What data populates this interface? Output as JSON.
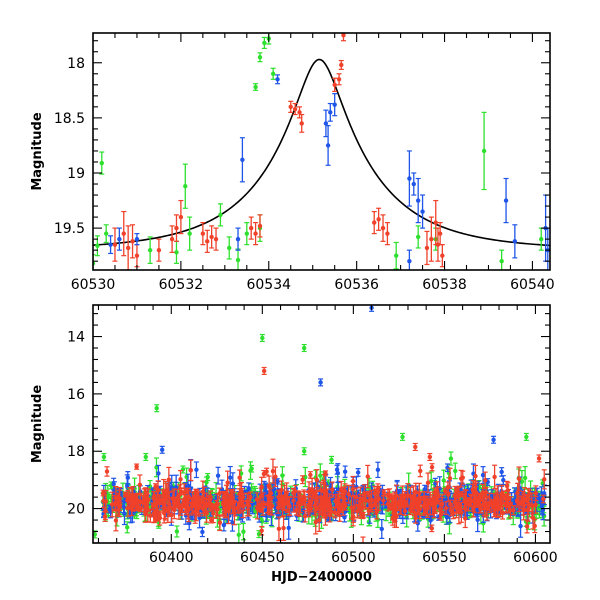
{
  "colors": {
    "green": "#2ee02e",
    "red": "#f0412a",
    "blue": "#1f55e8",
    "model_curve": "#000000",
    "axes": "#000000",
    "background": "#ffffff"
  },
  "chart_data": [
    {
      "type": "scatter",
      "panel": "top",
      "xlabel": "",
      "ylabel": "Magnitude",
      "xlim": [
        60530,
        60540.4
      ],
      "ylim": [
        19.88,
        17.73
      ],
      "y_inverted": true,
      "x_ticks": [
        60530,
        60532,
        60534,
        60536,
        60538,
        60540
      ],
      "y_ticks": [
        18,
        18.5,
        19,
        19.5
      ],
      "grid": false,
      "legend": "none",
      "model_curve": {
        "type": "line",
        "t0": 60535.15,
        "peak_mag": 17.97,
        "base_mag": 19.7,
        "tE": 2.3
      },
      "series": [
        {
          "color": "green",
          "points": [
            [
              60530.2,
              18.91,
              0.1
            ],
            [
              60530.3,
              19.55,
              0.08
            ],
            [
              60530.0,
              19.82,
              0.08
            ],
            [
              60530.1,
              19.66,
              0.09
            ],
            [
              60531.3,
              19.7,
              0.12
            ],
            [
              60531.9,
              19.72,
              0.1
            ],
            [
              60532.1,
              19.12,
              0.2
            ],
            [
              60532.2,
              19.55,
              0.15
            ],
            [
              60532.9,
              19.38,
              0.1
            ],
            [
              60533.1,
              19.68,
              0.1
            ],
            [
              60533.3,
              19.79,
              0.1
            ],
            [
              60533.5,
              19.55,
              0.1
            ],
            [
              60533.8,
              19.5,
              0.12
            ],
            [
              60533.9,
              17.82,
              0.05
            ],
            [
              60534.0,
              17.78,
              0.05
            ],
            [
              60533.8,
              17.95,
              0.04
            ],
            [
              60534.1,
              18.1,
              0.05
            ],
            [
              60533.7,
              18.22,
              0.03
            ],
            [
              60536.9,
              19.75,
              0.12
            ],
            [
              60537.4,
              19.58,
              0.1
            ],
            [
              60537.8,
              19.6,
              0.1
            ],
            [
              60538.9,
              18.8,
              0.35
            ],
            [
              60539.3,
              19.8,
              0.1
            ],
            [
              60540.2,
              19.6,
              0.1
            ]
          ]
        },
        {
          "color": "red",
          "points": [
            [
              60530.5,
              19.65,
              0.15
            ],
            [
              60530.7,
              19.55,
              0.2
            ],
            [
              60530.8,
              19.68,
              0.2
            ],
            [
              60530.9,
              19.62,
              0.15
            ],
            [
              60531.0,
              19.75,
              0.1
            ],
            [
              60531.5,
              19.7,
              0.1
            ],
            [
              60531.8,
              19.6,
              0.12
            ],
            [
              60531.9,
              19.5,
              0.12
            ],
            [
              60532.0,
              19.4,
              0.15
            ],
            [
              60532.5,
              19.55,
              0.1
            ],
            [
              60532.6,
              19.62,
              0.1
            ],
            [
              60532.7,
              19.58,
              0.1
            ],
            [
              60532.8,
              19.6,
              0.1
            ],
            [
              60533.6,
              19.5,
              0.1
            ],
            [
              60533.7,
              19.55,
              0.1
            ],
            [
              60533.8,
              19.48,
              0.1
            ],
            [
              60534.5,
              18.4,
              0.05
            ],
            [
              60534.6,
              18.42,
              0.05
            ],
            [
              60534.7,
              18.45,
              0.05
            ],
            [
              60534.75,
              18.55,
              0.08
            ],
            [
              60535.5,
              18.2,
              0.06
            ],
            [
              60535.6,
              18.15,
              0.05
            ],
            [
              60535.65,
              18.02,
              0.04
            ],
            [
              60535.7,
              17.75,
              0.05
            ],
            [
              60536.4,
              19.45,
              0.1
            ],
            [
              60536.5,
              19.42,
              0.1
            ],
            [
              60536.6,
              19.5,
              0.12
            ],
            [
              60536.7,
              19.55,
              0.1
            ],
            [
              60537.6,
              19.68,
              0.15
            ],
            [
              60537.7,
              19.6,
              0.2
            ],
            [
              60537.8,
              19.45,
              0.2
            ],
            [
              60537.85,
              19.65,
              0.15
            ],
            [
              60537.9,
              19.55,
              0.1
            ],
            [
              60537.95,
              19.75,
              0.1
            ]
          ]
        },
        {
          "color": "blue",
          "points": [
            [
              60530.4,
              19.65,
              0.08
            ],
            [
              60530.6,
              19.6,
              0.1
            ],
            [
              60531.0,
              19.6,
              0.05
            ],
            [
              60533.3,
              19.6,
              0.1
            ],
            [
              60533.4,
              18.88,
              0.2
            ],
            [
              60534.2,
              18.15,
              0.04
            ],
            [
              60535.3,
              18.55,
              0.12
            ],
            [
              60535.35,
              18.75,
              0.18
            ],
            [
              60535.4,
              18.45,
              0.08
            ],
            [
              60535.5,
              18.38,
              0.1
            ],
            [
              60537.2,
              19.05,
              0.25
            ],
            [
              60537.3,
              19.1,
              0.1
            ],
            [
              60537.4,
              19.25,
              0.2
            ],
            [
              60537.5,
              19.35,
              0.15
            ],
            [
              60537.2,
              19.8,
              0.1
            ],
            [
              60539.4,
              19.25,
              0.2
            ],
            [
              60539.6,
              19.62,
              0.15
            ],
            [
              60540.3,
              19.5,
              0.3
            ],
            [
              60540.35,
              19.7,
              0.2
            ]
          ]
        }
      ]
    },
    {
      "type": "scatter",
      "panel": "bottom",
      "xlabel": "HJD−2400000",
      "ylabel": "Magnitude",
      "xlim": [
        60357,
        60608
      ],
      "ylim": [
        21.2,
        12.9
      ],
      "y_inverted": true,
      "x_ticks": [
        60400,
        60450,
        60500,
        60550,
        60600
      ],
      "y_ticks": [
        14,
        16,
        18,
        20
      ],
      "grid": false,
      "legend": "none",
      "baseline_mag": 19.8,
      "outliers": [
        {
          "color": "blue",
          "x": 60510,
          "y": 13.0
        },
        {
          "color": "green",
          "x": 60450,
          "y": 14.05
        },
        {
          "color": "green",
          "x": 60473,
          "y": 14.4
        },
        {
          "color": "red",
          "x": 60451,
          "y": 15.2
        },
        {
          "color": "blue",
          "x": 60482,
          "y": 15.6
        },
        {
          "color": "green",
          "x": 60392,
          "y": 16.5
        },
        {
          "color": "blue",
          "x": 60395,
          "y": 17.95
        },
        {
          "color": "green",
          "x": 60386,
          "y": 18.2
        },
        {
          "color": "green",
          "x": 60363,
          "y": 18.2
        },
        {
          "color": "green",
          "x": 60473,
          "y": 18.0
        },
        {
          "color": "green",
          "x": 60527,
          "y": 17.5
        },
        {
          "color": "green",
          "x": 60595,
          "y": 17.5
        },
        {
          "color": "blue",
          "x": 60577,
          "y": 17.6
        },
        {
          "color": "red",
          "x": 60534,
          "y": 17.85
        },
        {
          "color": "red",
          "x": 60542,
          "y": 18.2
        },
        {
          "color": "red",
          "x": 60602,
          "y": 18.25
        },
        {
          "color": "green",
          "x": 60488,
          "y": 18.3
        },
        {
          "color": "green",
          "x": 60420,
          "y": 18.9
        },
        {
          "color": "green",
          "x": 60358,
          "y": 20.9
        }
      ]
    }
  ]
}
